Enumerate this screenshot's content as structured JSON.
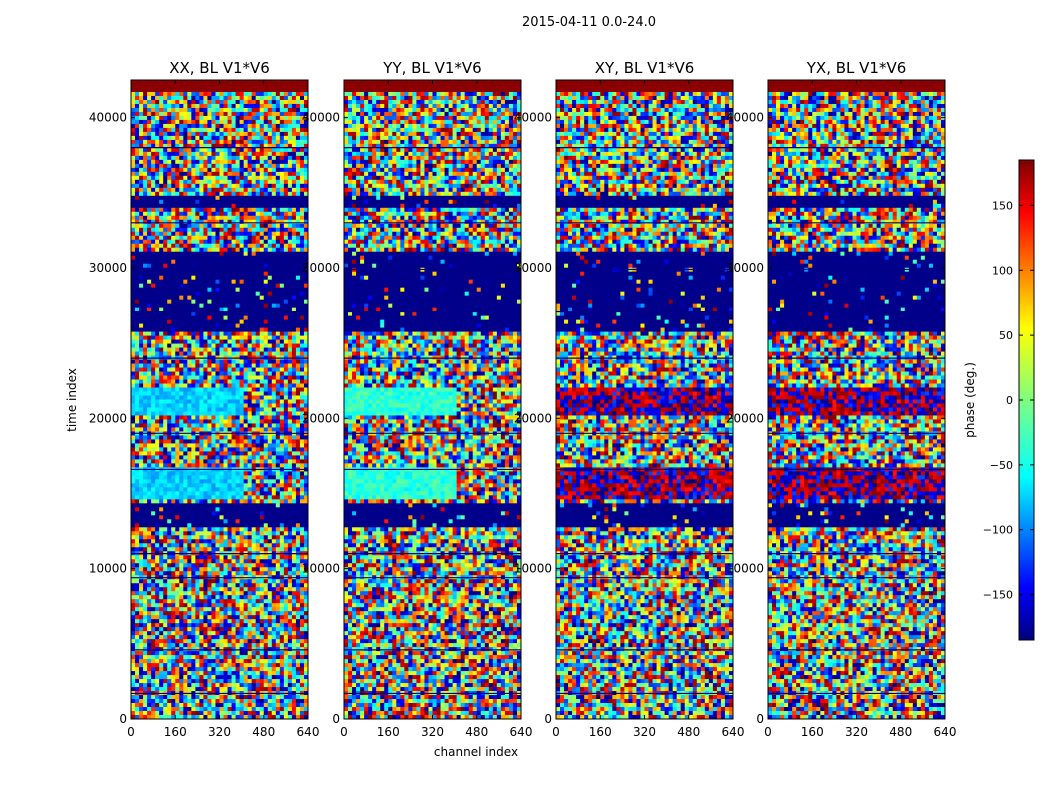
{
  "chart_data": {
    "type": "heatmap",
    "suptitle": "2015-04-11 0.0-24.0",
    "xlabel": "channel index",
    "ylabel": "time index",
    "xlim": [
      0,
      640
    ],
    "ylim": [
      0,
      42500
    ],
    "x_ticks": [
      0,
      160,
      320,
      480,
      640
    ],
    "x_tick_labels": [
      "0",
      "160",
      "320",
      "480",
      "640"
    ],
    "y_ticks": [
      0,
      10000,
      20000,
      30000,
      40000
    ],
    "y_tick_labels": [
      "0",
      "10000",
      "20000",
      "30000",
      "40000"
    ],
    "colorbar": {
      "label": "phase (deg.)",
      "range": [
        -185,
        185
      ],
      "ticks": [
        -150,
        -100,
        -50,
        0,
        50,
        100,
        150
      ],
      "tick_labels": [
        "−150",
        "−100",
        "−50",
        "0",
        "50",
        "100",
        "150"
      ],
      "colormap": "jet",
      "colors": [
        "#00007f",
        "#0000ff",
        "#007fff",
        "#00ffff",
        "#7fff7f",
        "#ffff00",
        "#ff7f00",
        "#ff0000",
        "#7f0000"
      ]
    },
    "panels": [
      {
        "title": "XX, BL V1*V6",
        "sharp_hi": [
          [
            14600,
            16800
          ],
          [
            20200,
            22000
          ]
        ],
        "sharp_hi_tone": "cyan"
      },
      {
        "title": "YY, BL V1*V6",
        "sharp_hi": [
          [
            14600,
            16800
          ],
          [
            20200,
            22000
          ]
        ],
        "sharp_hi_tone": "cyan-green"
      },
      {
        "title": "XY, BL V1*V6",
        "sharp_hi": [
          [
            14600,
            16800
          ],
          [
            20200,
            22000
          ]
        ],
        "sharp_hi_tone": "noisy"
      },
      {
        "title": "YX, BL V1*V6",
        "sharp_hi": [
          [
            14600,
            16800
          ],
          [
            20200,
            22000
          ]
        ],
        "sharp_hi_tone": "noisy"
      }
    ],
    "bands": [
      {
        "y": [
          41600,
          42500
        ],
        "kind": "red"
      },
      {
        "y": [
          34000,
          34800
        ],
        "kind": "blue"
      },
      {
        "y": [
          25700,
          31200
        ],
        "kind": "blue"
      },
      {
        "y": [
          12800,
          14400
        ],
        "kind": "blue"
      }
    ]
  }
}
